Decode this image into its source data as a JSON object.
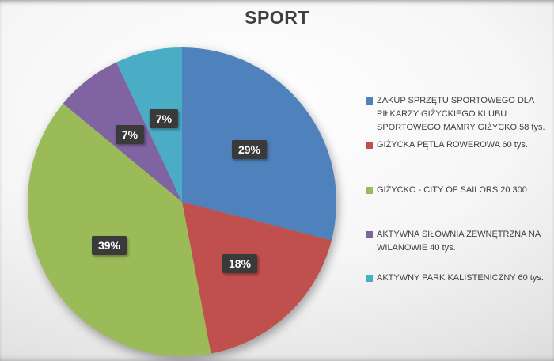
{
  "title": "SPORT",
  "chart_data": {
    "type": "pie",
    "title": "SPORT",
    "legend_position": "right",
    "data_labels": "percent",
    "slices": [
      {
        "label": "ZAKUP SPRZĘTU SPORTOWEGO DLA PIŁKARZY GIŻYCKIEGO KLUBU SPORTOWEGO MAMRY GIŻYCKO 58 tys.",
        "percent": 29,
        "percent_label": "29%",
        "color": "#4F81BD"
      },
      {
        "label": "GIŻYCKA PĘTLA ROWEROWA 60 tys.",
        "percent": 18,
        "percent_label": "18%",
        "color": "#C0504D"
      },
      {
        "label": "GIŻYCKO - CITY OF SAILORS 20 300",
        "percent": 39,
        "percent_label": "39%",
        "color": "#9BBB59"
      },
      {
        "label": "AKTYWNA SIŁOWNIA ZEWNĘTRZNA NA WILANOWIE 40 tys.",
        "percent": 7,
        "percent_label": "7%",
        "color": "#8064A2"
      },
      {
        "label": "AKTYWNY PARK KALISTENICZNY 60 tys.",
        "percent": 7,
        "percent_label": "7%",
        "color": "#4BACC6"
      }
    ]
  },
  "colors": {
    "title_text": "#3F3F3F",
    "legend_text": "#404040",
    "label_box_bg": "#3A3A3A",
    "label_box_text": "#FFFFFF"
  }
}
